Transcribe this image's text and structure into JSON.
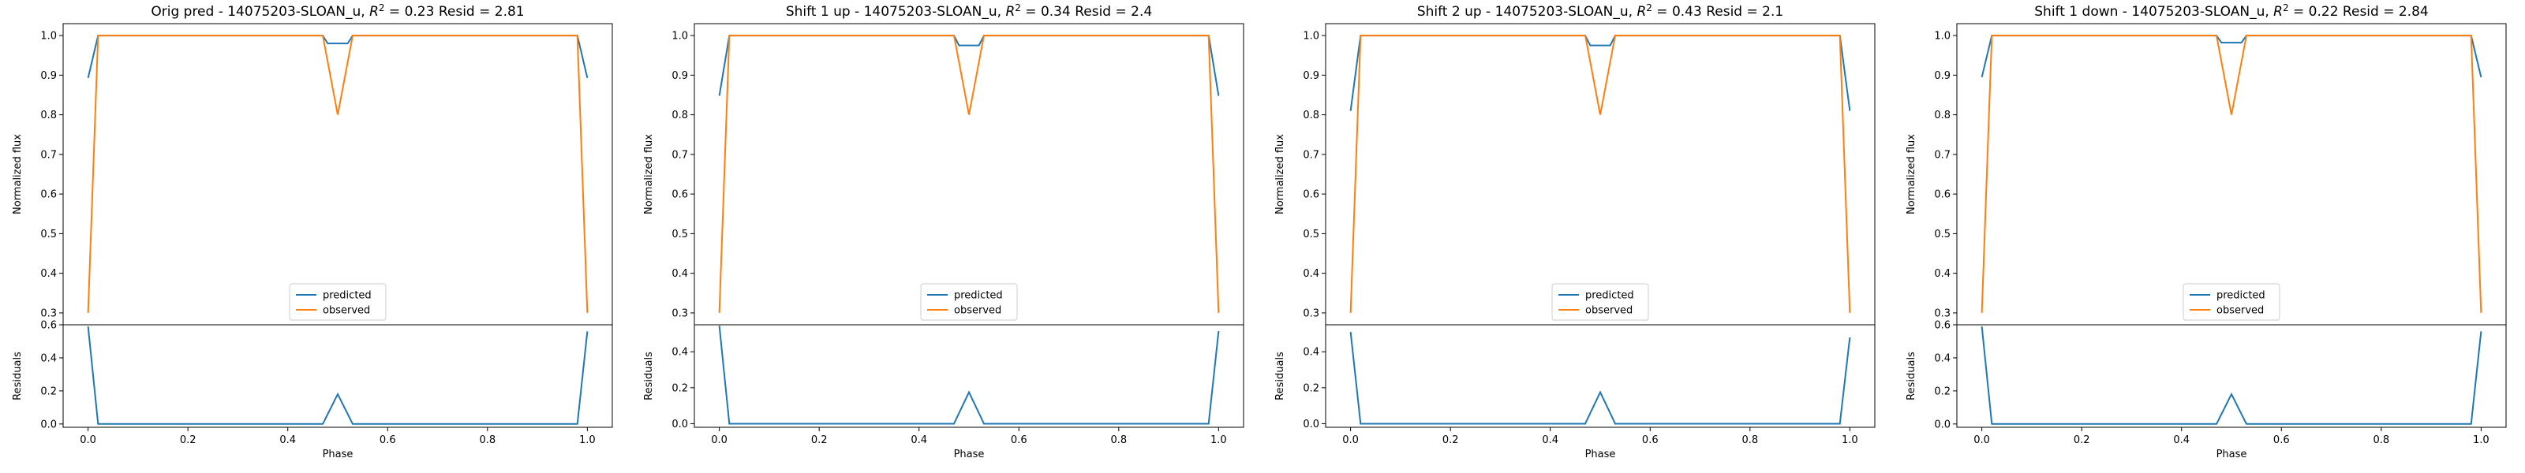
{
  "colors": {
    "predicted": "#1f77b4",
    "observed": "#ff7f0e"
  },
  "legend": {
    "placement": "lower-center",
    "entries": [
      "predicted",
      "observed"
    ]
  },
  "chart_data": [
    {
      "type": "line",
      "title": "Orig pred - 14075203-SLOAN_u, $R^2 = 0.23$ Resid = 2.81",
      "title_parts": {
        "prefix": "Orig pred - 14075203-SLOAN_u, ",
        "r2_symbol": "R",
        "r2_sup": "2",
        "r2_value": " = 0.23",
        "resid": " Resid = 2.81"
      },
      "xlabel": "Phase",
      "ylabel": "Normalized flux",
      "resid_ylabel": "Residuals",
      "xlim": [
        -0.05,
        1.05
      ],
      "ylim": [
        0.27,
        1.03
      ],
      "resid_ylim": [
        -0.02,
        0.6
      ],
      "xticks": [
        "0.0",
        "0.2",
        "0.4",
        "0.6",
        "0.8",
        "1.0"
      ],
      "yticks": [
        "0.3",
        "0.4",
        "0.5",
        "0.6",
        "0.7",
        "0.8",
        "0.9",
        "1.0"
      ],
      "resid_yticks": [
        "0.0",
        "0.2",
        "0.4",
        "0.6"
      ],
      "series": [
        {
          "name": "predicted",
          "edge_value": 0.893,
          "in_dip_value": 0.98
        },
        {
          "name": "observed",
          "edge_value": 0.3,
          "dip_min": 0.8
        }
      ],
      "residual_edge_values": [
        0.59,
        0.56
      ],
      "residual_dip_peak": 0.18
    },
    {
      "type": "line",
      "title": "Shift 1 up - 14075203-SLOAN_u, $R^2 = 0.34$ Resid = 2.4",
      "title_parts": {
        "prefix": "Shift 1 up - 14075203-SLOAN_u, ",
        "r2_symbol": "R",
        "r2_sup": "2",
        "r2_value": " = 0.34",
        "resid": " Resid = 2.4"
      },
      "xlabel": "Phase",
      "ylabel": "Normalized flux",
      "resid_ylabel": "Residuals",
      "xlim": [
        -0.05,
        1.05
      ],
      "ylim": [
        0.27,
        1.03
      ],
      "resid_ylim": [
        -0.02,
        0.55
      ],
      "xticks": [
        "0.0",
        "0.2",
        "0.4",
        "0.6",
        "0.8",
        "1.0"
      ],
      "yticks": [
        "0.3",
        "0.4",
        "0.5",
        "0.6",
        "0.7",
        "0.8",
        "0.9",
        "1.0"
      ],
      "resid_yticks": [
        "0.0",
        "0.2",
        "0.4"
      ],
      "series": [
        {
          "name": "predicted",
          "edge_value": 0.848,
          "in_dip_value": 0.975
        },
        {
          "name": "observed",
          "edge_value": 0.3,
          "dip_min": 0.8
        }
      ],
      "residual_edge_values": [
        0.545,
        0.515
      ],
      "residual_dip_peak": 0.175
    },
    {
      "type": "line",
      "title": "Shift 2 up - 14075203-SLOAN_u, $R^2 = 0.43$ Resid = 2.1",
      "title_parts": {
        "prefix": "Shift 2 up - 14075203-SLOAN_u, ",
        "r2_symbol": "R",
        "r2_sup": "2",
        "r2_value": " = 0.43",
        "resid": " Resid = 2.1"
      },
      "xlabel": "Phase",
      "ylabel": "Normalized flux",
      "resid_ylabel": "Residuals",
      "xlim": [
        -0.05,
        1.05
      ],
      "ylim": [
        0.27,
        1.03
      ],
      "resid_ylim": [
        -0.02,
        0.55
      ],
      "xticks": [
        "0.0",
        "0.2",
        "0.4",
        "0.6",
        "0.8",
        "1.0"
      ],
      "yticks": [
        "0.3",
        "0.4",
        "0.5",
        "0.6",
        "0.7",
        "0.8",
        "0.9",
        "1.0"
      ],
      "resid_yticks": [
        "0.0",
        "0.2",
        "0.4"
      ],
      "series": [
        {
          "name": "predicted",
          "edge_value": 0.81,
          "in_dip_value": 0.975
        },
        {
          "name": "observed",
          "edge_value": 0.3,
          "dip_min": 0.8
        }
      ],
      "residual_edge_values": [
        0.51,
        0.48
      ],
      "residual_dip_peak": 0.175
    },
    {
      "type": "line",
      "title": "Shift 1 down - 14075203-SLOAN_u, $R^2 = 0.22$ Resid = 2.84",
      "title_parts": {
        "prefix": "Shift 1 down - 14075203-SLOAN_u, ",
        "r2_symbol": "R",
        "r2_sup": "2",
        "r2_value": " = 0.22",
        "resid": " Resid = 2.84"
      },
      "xlabel": "Phase",
      "ylabel": "Normalized flux",
      "resid_ylabel": "Residuals",
      "xlim": [
        -0.05,
        1.05
      ],
      "ylim": [
        0.27,
        1.03
      ],
      "resid_ylim": [
        -0.02,
        0.6
      ],
      "xticks": [
        "0.0",
        "0.2",
        "0.4",
        "0.6",
        "0.8",
        "1.0"
      ],
      "yticks": [
        "0.3",
        "0.4",
        "0.5",
        "0.6",
        "0.7",
        "0.8",
        "0.9",
        "1.0"
      ],
      "resid_yticks": [
        "0.0",
        "0.2",
        "0.4",
        "0.6"
      ],
      "series": [
        {
          "name": "predicted",
          "edge_value": 0.895,
          "in_dip_value": 0.982
        },
        {
          "name": "observed",
          "edge_value": 0.3,
          "dip_min": 0.8
        }
      ],
      "residual_edge_values": [
        0.59,
        0.56
      ],
      "residual_dip_peak": 0.18
    }
  ]
}
